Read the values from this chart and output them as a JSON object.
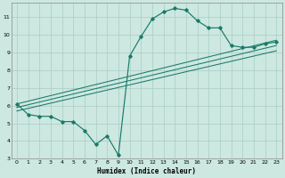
{
  "xlabel": "Humidex (Indice chaleur)",
  "bg_color": "#cce8e0",
  "grid_color": "#aaccc4",
  "line_color": "#1a7a6a",
  "xlim": [
    -0.5,
    23.5
  ],
  "ylim": [
    3,
    11.8
  ],
  "xticks": [
    0,
    1,
    2,
    3,
    4,
    5,
    6,
    7,
    8,
    9,
    10,
    11,
    12,
    13,
    14,
    15,
    16,
    17,
    18,
    19,
    20,
    21,
    22,
    23
  ],
  "yticks": [
    3,
    4,
    5,
    6,
    7,
    8,
    9,
    10,
    11
  ],
  "series": [
    [
      0,
      6.1
    ],
    [
      1,
      5.5
    ],
    [
      2,
      5.4
    ],
    [
      3,
      5.4
    ],
    [
      4,
      5.1
    ],
    [
      5,
      5.1
    ],
    [
      6,
      4.6
    ],
    [
      7,
      3.8
    ],
    [
      8,
      4.3
    ],
    [
      9,
      3.2
    ],
    [
      10,
      8.8
    ],
    [
      11,
      9.9
    ],
    [
      12,
      10.9
    ],
    [
      13,
      11.3
    ],
    [
      14,
      11.5
    ],
    [
      15,
      11.4
    ],
    [
      16,
      10.8
    ],
    [
      17,
      10.4
    ],
    [
      18,
      10.4
    ],
    [
      19,
      9.4
    ],
    [
      20,
      9.3
    ],
    [
      21,
      9.3
    ],
    [
      22,
      9.5
    ],
    [
      23,
      9.6
    ]
  ],
  "trend_lines": [
    [
      [
        0,
        6.1
      ],
      [
        23,
        9.7
      ]
    ],
    [
      [
        0,
        5.9
      ],
      [
        23,
        9.4
      ]
    ],
    [
      [
        0,
        5.7
      ],
      [
        23,
        9.1
      ]
    ]
  ]
}
